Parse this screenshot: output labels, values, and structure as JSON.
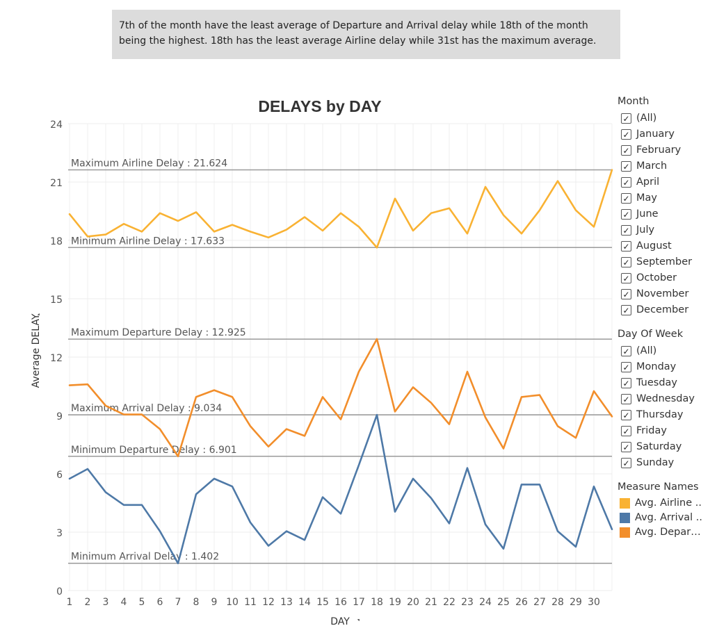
{
  "caption": "7th of the month have the least average of Departure and Arrival delay while 18th of the month being the highest. 18th has the least average Airline delay while 31st has the maximum average.",
  "filters": {
    "month": {
      "title": "Month",
      "items": [
        "(All)",
        "January",
        "February",
        "March",
        "April",
        "May",
        "June",
        "July",
        "August",
        "September",
        "October",
        "November",
        "December"
      ]
    },
    "day_of_week": {
      "title": "Day Of Week",
      "items": [
        "(All)",
        "Monday",
        "Tuesday",
        "Wednesday",
        "Thursday",
        "Friday",
        "Saturday",
        "Sunday"
      ]
    }
  },
  "legend": {
    "title": "Measure Names",
    "items": [
      {
        "label": "Avg. Airline ..",
        "color": "#f9b233"
      },
      {
        "label": "Avg. Arrival ..",
        "color": "#4e79a7"
      },
      {
        "label": "Avg. Depart...",
        "color": "#f28e2b"
      }
    ]
  },
  "chart_data": {
    "type": "line",
    "title": "DELAYS by DAY",
    "xlabel": "DAY",
    "ylabel": "Average DELAY",
    "x": [
      1,
      2,
      3,
      4,
      5,
      6,
      7,
      8,
      9,
      10,
      11,
      12,
      13,
      14,
      15,
      16,
      17,
      18,
      19,
      20,
      21,
      22,
      23,
      24,
      25,
      26,
      27,
      28,
      29,
      30,
      31
    ],
    "x_tick_labels": [
      "1",
      "2",
      "3",
      "4",
      "5",
      "6",
      "7",
      "8",
      "9",
      "10",
      "11",
      "12",
      "13",
      "14",
      "15",
      "16",
      "17",
      "18",
      "19",
      "20",
      "21",
      "22",
      "23",
      "24",
      "25",
      "26",
      "27",
      "28",
      "29",
      "30"
    ],
    "ylim": [
      0,
      24
    ],
    "y_ticks": [
      0,
      3,
      6,
      9,
      12,
      15,
      18,
      21,
      24
    ],
    "grid": true,
    "legend_position": "right",
    "series": [
      {
        "name": "Avg. Airline ..",
        "color": "#f9b233",
        "values": [
          19.35,
          18.2,
          18.3,
          18.85,
          18.45,
          19.4,
          19.0,
          19.45,
          18.45,
          18.8,
          18.45,
          18.15,
          18.55,
          19.2,
          18.5,
          19.4,
          18.7,
          17.63,
          20.15,
          18.5,
          19.4,
          19.65,
          18.35,
          20.75,
          19.3,
          18.35,
          19.55,
          21.05,
          19.55,
          18.7,
          21.62
        ]
      },
      {
        "name": "Avg. Arrival ..",
        "color": "#4e79a7",
        "values": [
          5.75,
          6.25,
          5.05,
          4.4,
          4.4,
          3.05,
          1.4,
          4.95,
          5.75,
          5.35,
          3.5,
          2.3,
          3.05,
          2.6,
          4.8,
          3.95,
          6.45,
          9.03,
          4.05,
          5.75,
          4.75,
          3.45,
          6.3,
          3.4,
          2.15,
          5.45,
          5.45,
          3.05,
          2.25,
          5.35,
          3.15
        ]
      },
      {
        "name": "Avg. Depart...",
        "color": "#f28e2b",
        "values": [
          10.55,
          10.6,
          9.5,
          9.05,
          9.05,
          8.3,
          6.9,
          9.95,
          10.3,
          9.95,
          8.45,
          7.4,
          8.3,
          7.95,
          9.95,
          8.8,
          11.25,
          12.93,
          9.2,
          10.45,
          9.65,
          8.55,
          11.25,
          8.9,
          7.3,
          9.95,
          10.05,
          8.45,
          7.85,
          10.25,
          8.95
        ]
      }
    ],
    "reference_lines": [
      {
        "label": "Maximum Airline Delay : 21.624",
        "value": 21.624
      },
      {
        "label": "Minimum Airline Delay : 17.633",
        "value": 17.633
      },
      {
        "label": "Maximum Departure Delay : 12.925",
        "value": 12.925
      },
      {
        "label": "Maximum Arrival Delay : 9.034",
        "value": 9.034
      },
      {
        "label": "Minimum Departure Delay : 6.901",
        "value": 6.901
      },
      {
        "label": "Minimum Arrival Delay : 1.402",
        "value": 1.402
      }
    ]
  }
}
